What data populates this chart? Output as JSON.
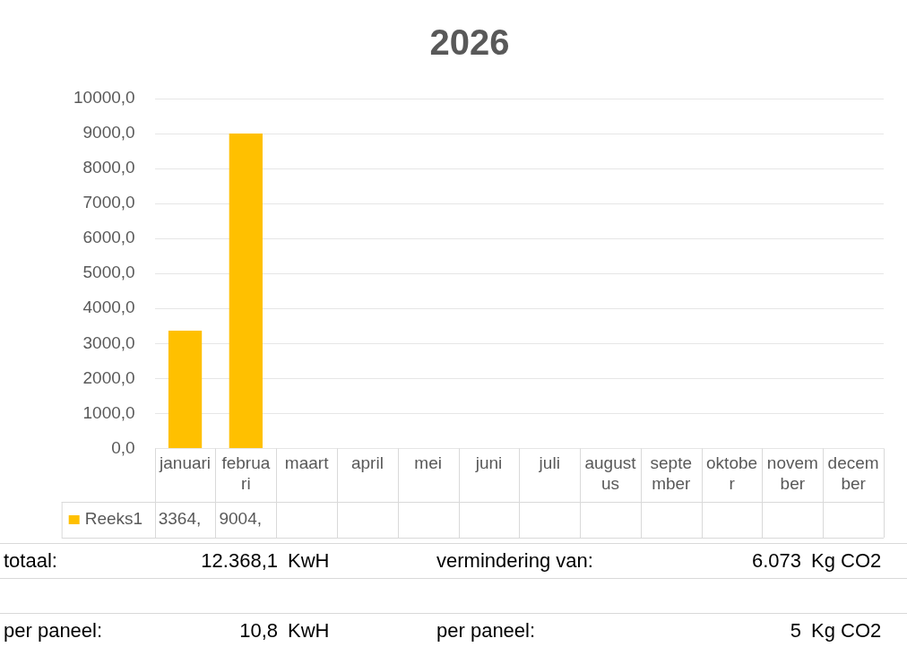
{
  "chart_data": {
    "type": "bar",
    "title": "2026",
    "categories": [
      "januari",
      "februari",
      "maart",
      "april",
      "mei",
      "juni",
      "juli",
      "augustus",
      "september",
      "oktober",
      "november",
      "december"
    ],
    "series": [
      {
        "name": "Reeks1",
        "color": "#ffc000",
        "values": [
          3364,
          9004,
          null,
          null,
          null,
          null,
          null,
          null,
          null,
          null,
          null,
          null
        ],
        "value_labels": [
          "3364,",
          "9004,",
          null,
          null,
          null,
          null,
          null,
          null,
          null,
          null,
          null,
          null
        ]
      }
    ],
    "ylim": [
      0,
      10000
    ],
    "yticks": [
      {
        "value": 0,
        "label": "0,0"
      },
      {
        "value": 1000,
        "label": "1000,0"
      },
      {
        "value": 2000,
        "label": "2000,0"
      },
      {
        "value": 3000,
        "label": "3000,0"
      },
      {
        "value": 4000,
        "label": "4000,0"
      },
      {
        "value": 5000,
        "label": "5000,0"
      },
      {
        "value": 6000,
        "label": "6000,0"
      },
      {
        "value": 7000,
        "label": "7000,0"
      },
      {
        "value": 8000,
        "label": "8000,0"
      },
      {
        "value": 9000,
        "label": "9000,0"
      },
      {
        "value": 10000,
        "label": "10000,0"
      }
    ],
    "grid": "y",
    "annotations": [
      "totaal:",
      "12.368,1",
      "KwH",
      "vermindering van:",
      "6.073",
      "Kg CO2",
      "per paneel:",
      "10,8",
      "KwH",
      "per paneel:",
      "5",
      "Kg CO2"
    ]
  }
}
